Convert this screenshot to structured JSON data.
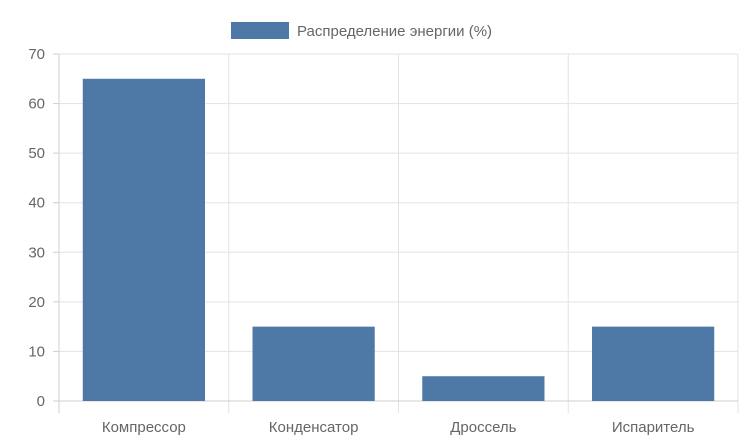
{
  "chart_data": {
    "type": "bar",
    "categories": [
      "Компрессор",
      "Конденсатор",
      "Дроссель",
      "Испаритель"
    ],
    "series": [
      {
        "name": "Распределение энергии (%)",
        "values": [
          65,
          15,
          5,
          15
        ],
        "color": "#4e79a7"
      }
    ],
    "ylim": [
      0,
      70
    ],
    "yticks": [
      0,
      10,
      20,
      30,
      40,
      50,
      60,
      70
    ],
    "grid": true,
    "legend": "top-center"
  }
}
